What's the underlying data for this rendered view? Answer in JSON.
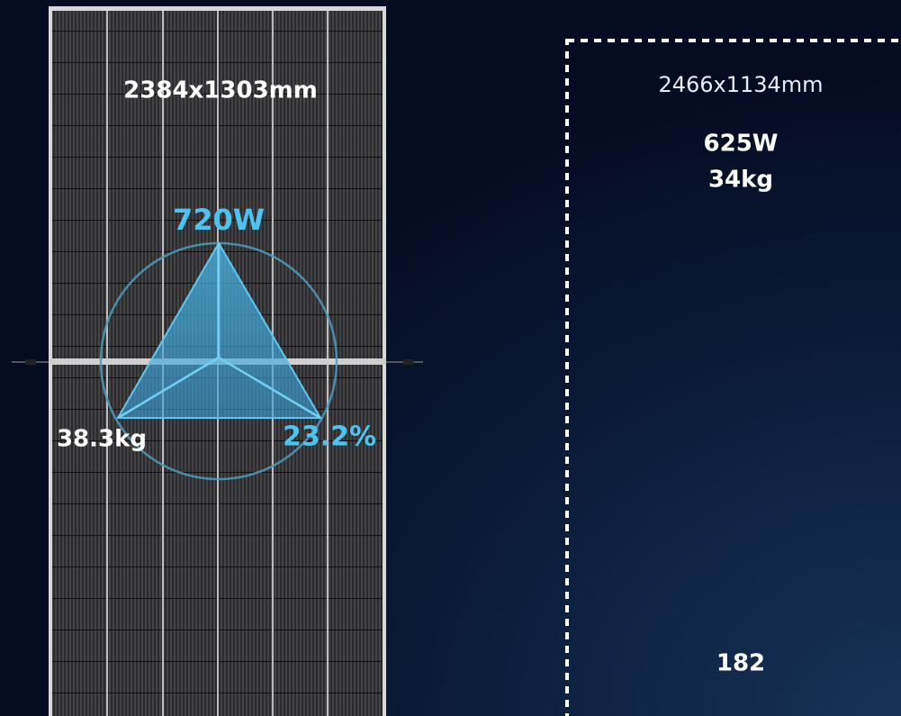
{
  "panel_a": {
    "dimensions": "2384x1303mm",
    "power": "720W",
    "weight": "38.3kg",
    "efficiency": "23.2%"
  },
  "panel_b": {
    "dimensions": "2466x1134mm",
    "power": "625W",
    "weight": "34kg",
    "cell": "182"
  }
}
